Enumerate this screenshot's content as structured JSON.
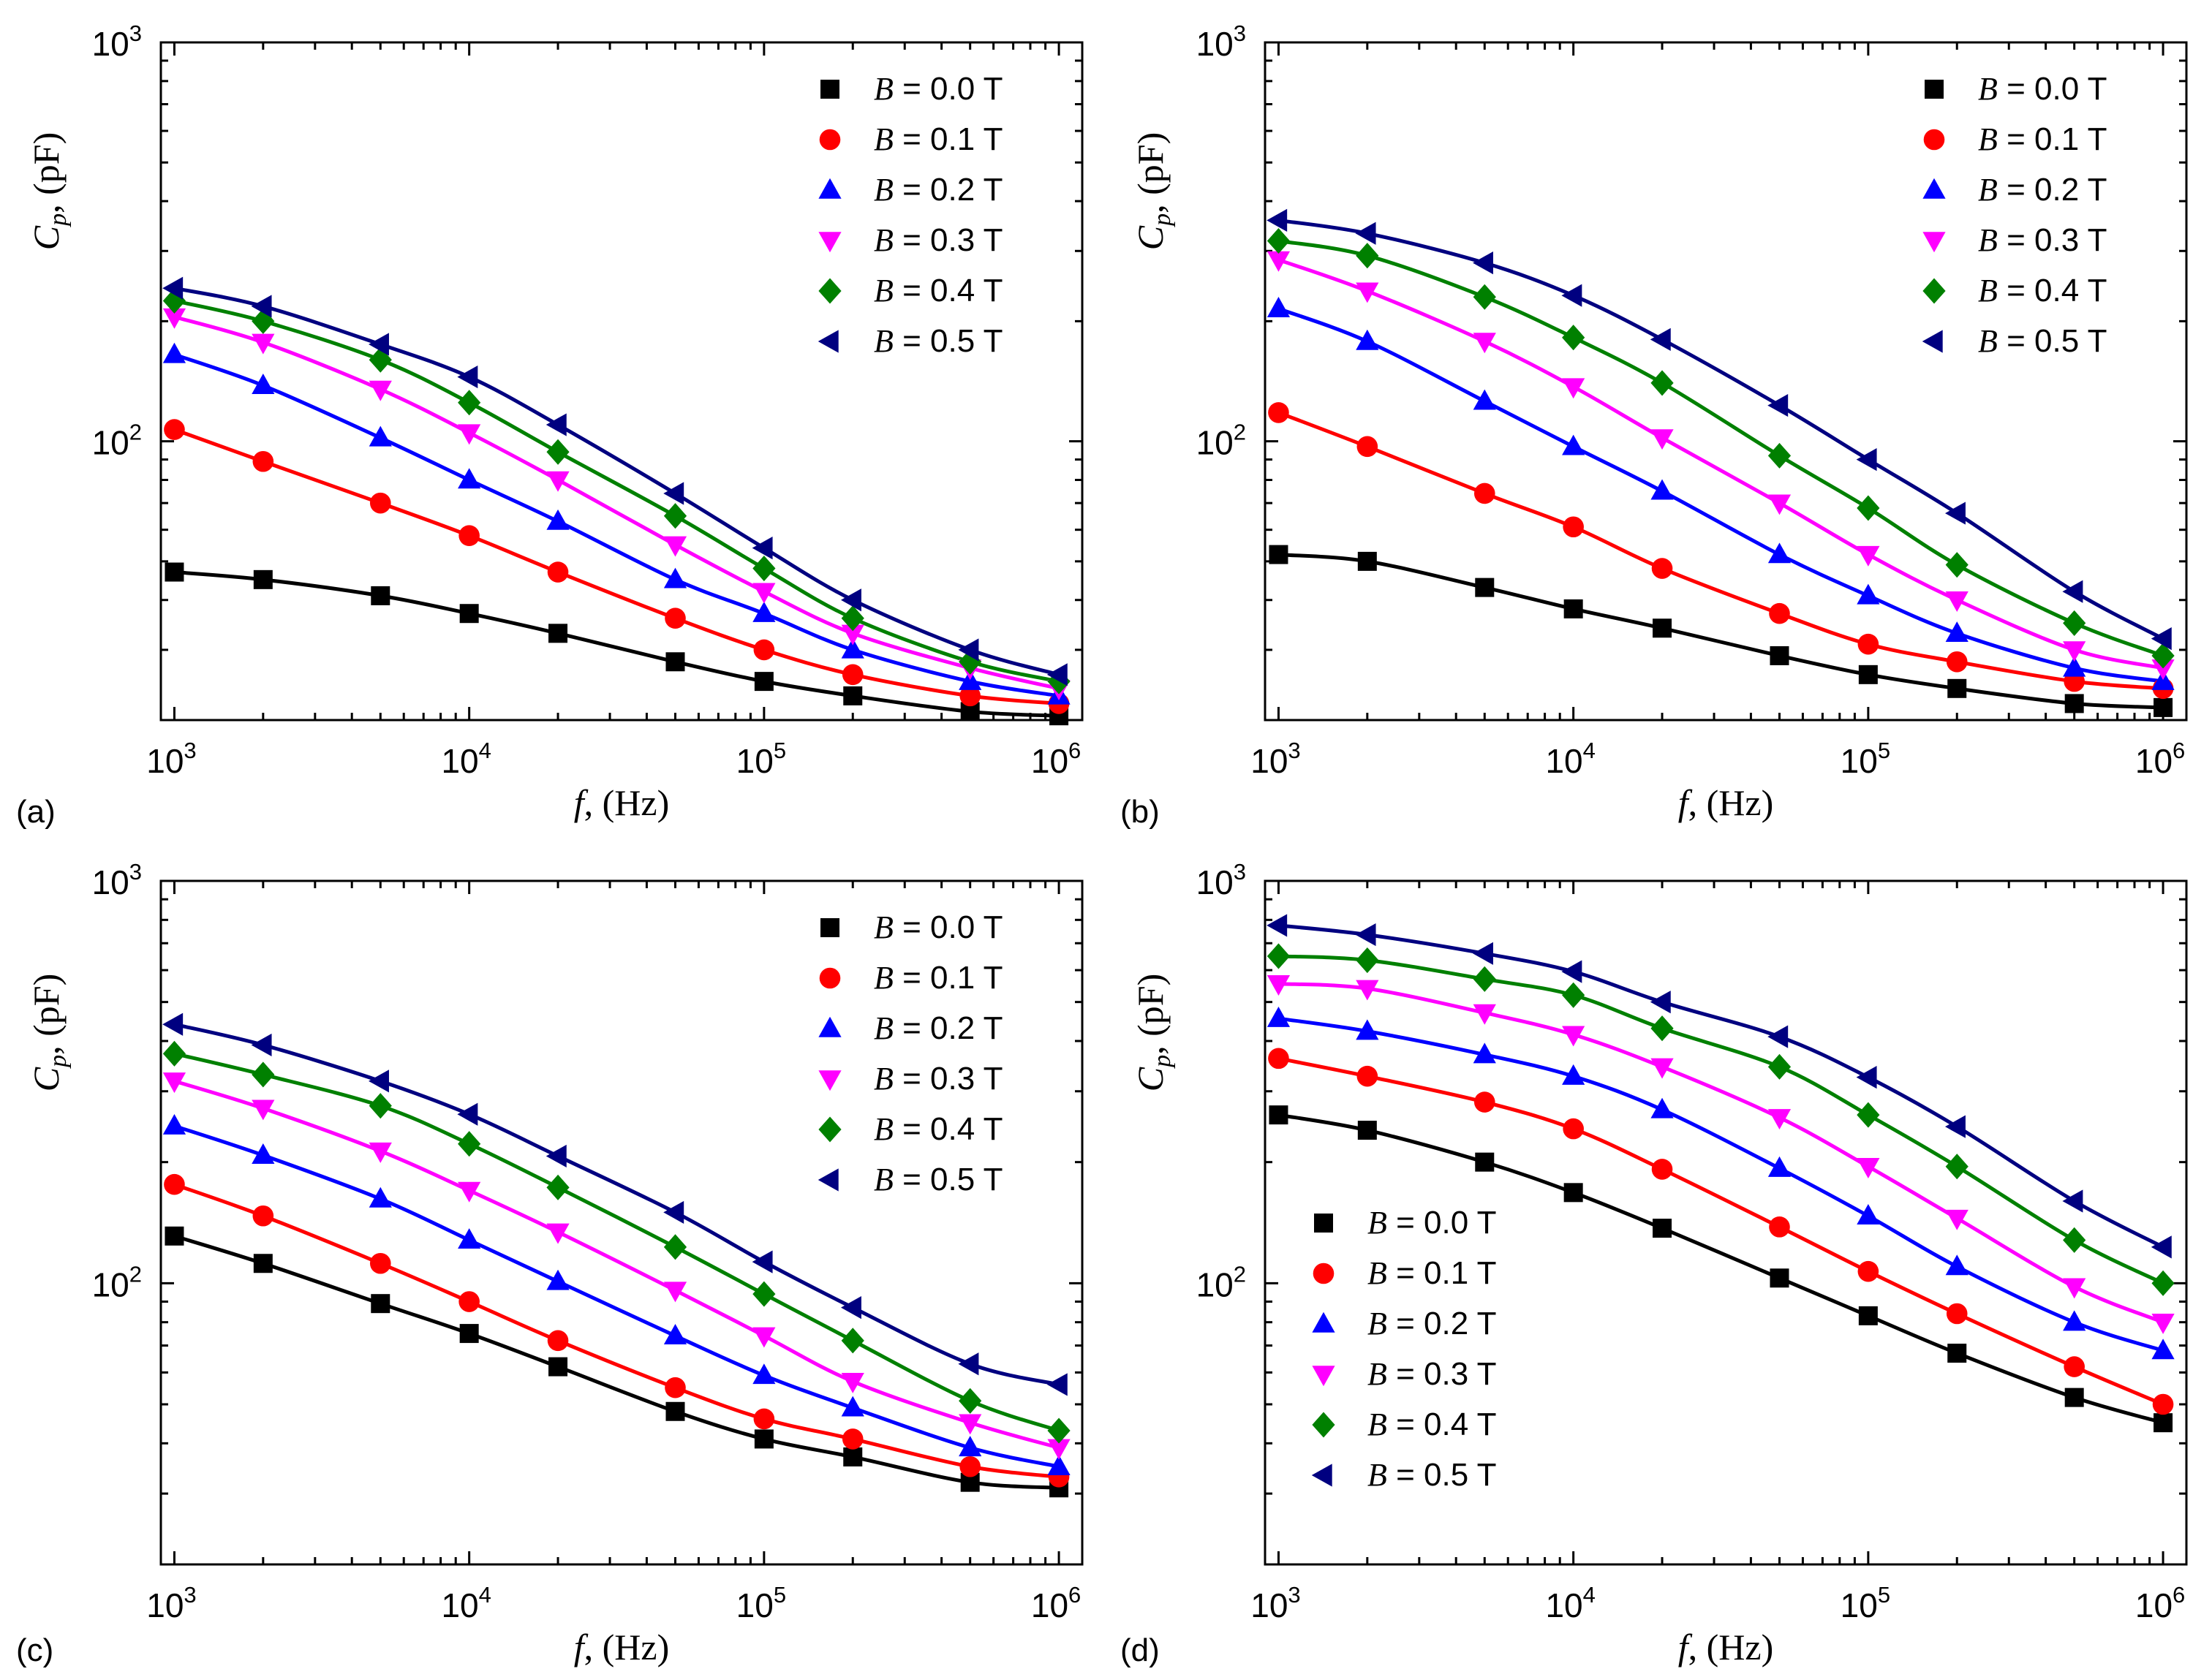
{
  "figure": {
    "description_labels": [
      "(a)",
      "(b)",
      "(c)",
      "(d)"
    ]
  },
  "colors": {
    "B=0.0": "#000000",
    "B=0.1": "#ff0000",
    "B=0.2": "#0000ff",
    "B=0.3": "#ff00ff",
    "B=0.4": "#008000",
    "B=0.5": "#000080"
  },
  "chart_data": [
    {
      "type": "scatter",
      "panel": "(a)",
      "xscale": "log",
      "yscale": "log",
      "xlabel": "f, (Hz)",
      "ylabel": "Cp, (pF)",
      "xlim": [
        900,
        1200000
      ],
      "ylim": [
        20,
        1000
      ],
      "xticks": [
        "10^3",
        "10^4",
        "10^5",
        "10^6"
      ],
      "yticks": [
        "10^2",
        "10^3"
      ],
      "legend_position": "top-right",
      "x": [
        1000,
        2000,
        5000,
        10000,
        20000,
        50000,
        100000,
        200000,
        500000,
        1000000
      ],
      "series": [
        {
          "name": "B = 0.0 T",
          "marker": "square",
          "values": [
            47,
            45,
            41,
            37,
            33,
            28,
            25,
            23,
            21,
            20.5
          ]
        },
        {
          "name": "B = 0.1 T",
          "marker": "circle",
          "values": [
            107,
            89,
            70,
            58,
            47,
            36,
            30,
            26,
            23,
            22
          ]
        },
        {
          "name": "B = 0.2 T",
          "marker": "triangle-up",
          "values": [
            165,
            138,
            102,
            80,
            63,
            45,
            37,
            30,
            25,
            23
          ]
        },
        {
          "name": "B = 0.3 T",
          "marker": "triangle-down",
          "values": [
            205,
            177,
            135,
            105,
            80,
            55,
            42,
            33,
            27,
            24
          ]
        },
        {
          "name": "B = 0.4 T",
          "marker": "diamond",
          "values": [
            225,
            200,
            160,
            125,
            94,
            65,
            48,
            36,
            28,
            25
          ]
        },
        {
          "name": "B = 0.5 T",
          "marker": "triangle-left",
          "values": [
            242,
            218,
            175,
            145,
            110,
            74,
            54,
            40,
            30,
            26
          ]
        }
      ]
    },
    {
      "type": "scatter",
      "panel": "(b)",
      "xscale": "log",
      "yscale": "log",
      "xlabel": "f, (Hz)",
      "ylabel": "Cp, (pF)",
      "xlim": [
        900,
        1200000
      ],
      "ylim": [
        20,
        1000
      ],
      "xticks": [
        "10^3",
        "10^4",
        "10^5",
        "10^6"
      ],
      "yticks": [
        "10^2",
        "10^3"
      ],
      "legend_position": "top-right",
      "x": [
        1000,
        2000,
        5000,
        10000,
        20000,
        50000,
        100000,
        200000,
        500000,
        1000000
      ],
      "series": [
        {
          "name": "B = 0.0 T",
          "marker": "square",
          "values": [
            52,
            50,
            43,
            38,
            34,
            29,
            26,
            24,
            22,
            21.5
          ]
        },
        {
          "name": "B = 0.1 T",
          "marker": "circle",
          "values": [
            118,
            97,
            74,
            61,
            48,
            37,
            31,
            28,
            25,
            24
          ]
        },
        {
          "name": "B = 0.2 T",
          "marker": "triangle-up",
          "values": [
            215,
            178,
            126,
            97,
            75,
            52,
            41,
            33,
            27,
            25
          ]
        },
        {
          "name": "B = 0.3 T",
          "marker": "triangle-down",
          "values": [
            285,
            238,
            178,
            137,
            102,
            70,
            52,
            40,
            30,
            27
          ]
        },
        {
          "name": "B = 0.4 T",
          "marker": "diamond",
          "values": [
            318,
            292,
            230,
            182,
            140,
            92,
            68,
            49,
            35,
            29
          ]
        },
        {
          "name": "B = 0.5 T",
          "marker": "triangle-left",
          "values": [
            358,
            332,
            280,
            232,
            180,
            123,
            90,
            66,
            42,
            32
          ]
        }
      ]
    },
    {
      "type": "scatter",
      "panel": "(c)",
      "xscale": "log",
      "yscale": "log",
      "xlabel": "f, (Hz)",
      "ylabel": "Cp, (pF)",
      "xlim": [
        900,
        1200000
      ],
      "ylim": [
        20,
        1000
      ],
      "xticks": [
        "10^3",
        "10^4",
        "10^5",
        "10^6"
      ],
      "yticks": [
        "10^2",
        "10^3"
      ],
      "legend_position": "top-right",
      "x": [
        1000,
        2000,
        5000,
        10000,
        20000,
        50000,
        100000,
        200000,
        500000,
        1000000
      ],
      "series": [
        {
          "name": "B = 0.0 T",
          "marker": "square",
          "values": [
            131,
            112,
            89,
            75,
            62,
            48,
            41,
            37,
            32,
            31
          ]
        },
        {
          "name": "B = 0.1 T",
          "marker": "circle",
          "values": [
            176,
            147,
            112,
            90,
            72,
            55,
            46,
            41,
            35,
            33
          ]
        },
        {
          "name": "B = 0.2 T",
          "marker": "triangle-up",
          "values": [
            246,
            208,
            162,
            128,
            101,
            74,
            59,
            49,
            39,
            35
          ]
        },
        {
          "name": "B = 0.3 T",
          "marker": "triangle-down",
          "values": [
            318,
            272,
            213,
            170,
            134,
            96,
            74,
            57,
            45,
            39
          ]
        },
        {
          "name": "B = 0.4 T",
          "marker": "diamond",
          "values": [
            372,
            330,
            276,
            222,
            173,
            123,
            94,
            72,
            51,
            43
          ]
        },
        {
          "name": "B = 0.5 T",
          "marker": "triangle-left",
          "values": [
            440,
            391,
            318,
            263,
            207,
            150,
            113,
            87,
            63,
            56
          ]
        }
      ]
    },
    {
      "type": "scatter",
      "panel": "(d)",
      "xscale": "log",
      "yscale": "log",
      "xlabel": "f, (Hz)",
      "ylabel": "Cp, (pF)",
      "xlim": [
        900,
        1200000
      ],
      "ylim": [
        20,
        1000
      ],
      "xticks": [
        "10^3",
        "10^4",
        "10^5",
        "10^6"
      ],
      "yticks": [
        "10^2",
        "10^3"
      ],
      "legend_position": "bottom-left",
      "x": [
        1000,
        2000,
        5000,
        10000,
        20000,
        50000,
        100000,
        200000,
        500000,
        1000000
      ],
      "series": [
        {
          "name": "B = 0.0 T",
          "marker": "square",
          "values": [
            262,
            240,
            200,
            168,
            137,
            103,
            83,
            67,
            52,
            45
          ]
        },
        {
          "name": "B = 0.1 T",
          "marker": "circle",
          "values": [
            362,
            327,
            282,
            242,
            192,
            138,
            107,
            84,
            62,
            50
          ]
        },
        {
          "name": "B = 0.2 T",
          "marker": "triangle-up",
          "values": [
            455,
            423,
            370,
            327,
            270,
            193,
            147,
            110,
            80,
            68
          ]
        },
        {
          "name": "B = 0.3 T",
          "marker": "triangle-down",
          "values": [
            555,
            540,
            470,
            415,
            345,
            258,
            195,
            145,
            98,
            80
          ]
        },
        {
          "name": "B = 0.4 T",
          "marker": "diamond",
          "values": [
            650,
            635,
            570,
            520,
            430,
            345,
            262,
            195,
            128,
            100
          ]
        },
        {
          "name": "B = 0.5 T",
          "marker": "triangle-left",
          "values": [
            775,
            735,
            660,
            595,
            500,
            410,
            325,
            245,
            160,
            123
          ]
        }
      ]
    }
  ]
}
